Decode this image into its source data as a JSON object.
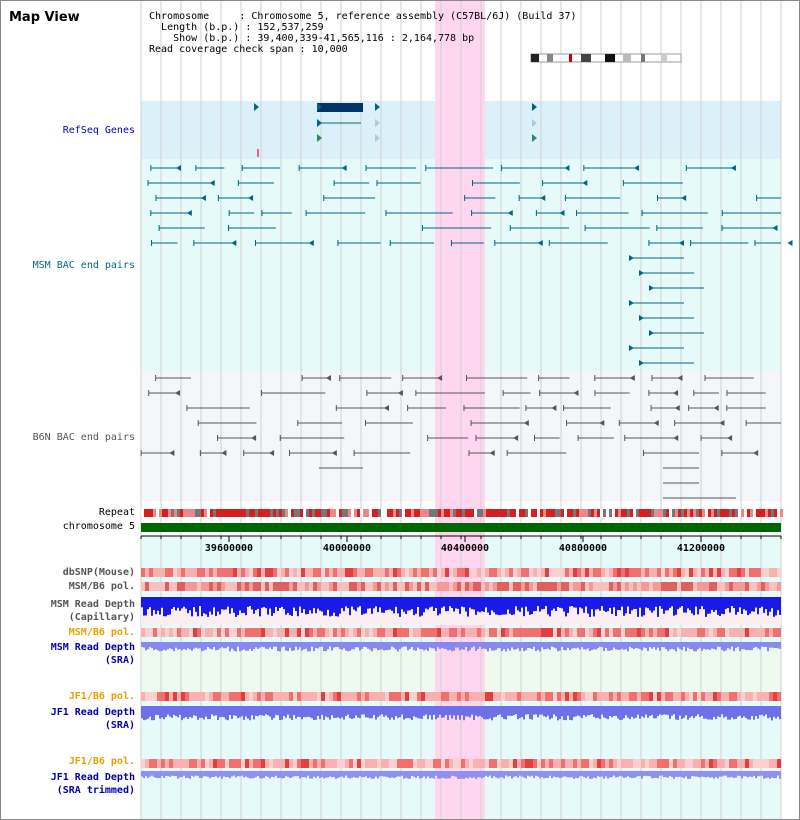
{
  "title": "Map View",
  "info": {
    "chromosome_key": "Chromosome",
    "chromosome_val": "Chromosome 5, reference assembly (C57BL/6J) (Build 37)",
    "length_key": "Length (b.p.)",
    "length_val": "152,537,259",
    "show_key": "Show (b.p.)",
    "show_val": "39,400,339-41,565,116 : 2,164,778 bp",
    "coverage_key": "Read coverage check span",
    "coverage_val": "10,000"
  },
  "tracks": {
    "refseq": "RefSeq Genes",
    "msm_bac": "MSM BAC end pairs",
    "b6n_bac": "B6N BAC end pairs",
    "repeat": "Repeat",
    "chromosome": "chromosome 5",
    "dbsnp": "dbSNP(Mouse)",
    "msm_b6_pol": "MSM/B6 pol.",
    "msm_read_depth_cap_1": "MSM Read Depth",
    "msm_read_depth_cap_2": "(Capillary)",
    "msm_b6_pol_sra": "MSM/B6 pol.",
    "msm_read_depth_sra_1": "MSM Read Depth",
    "msm_read_depth_sra_2": "(SRA)",
    "jf1_b6_pol": "JF1/B6 pol.",
    "jf1_read_depth_1": "JF1 Read Depth",
    "jf1_read_depth_2": "(SRA)",
    "jf1_b6_pol_trim": "JF1/B6 pol.",
    "jf1_read_depth_trim_1": "JF1 Read Depth",
    "jf1_read_depth_trim_2": "(SRA trimmed)"
  },
  "axis_ticks": [
    "39600000",
    "40000000",
    "40400000",
    "40800000",
    "41200000"
  ],
  "colors": {
    "refseq_label": "#0000cc",
    "msm_label": "#006680",
    "b6n_label": "#555555",
    "orange_label": "#e8a000",
    "blue_label": "#0000aa",
    "highlight": "#ffd6f0",
    "chromosome_bar": "#006600"
  }
}
